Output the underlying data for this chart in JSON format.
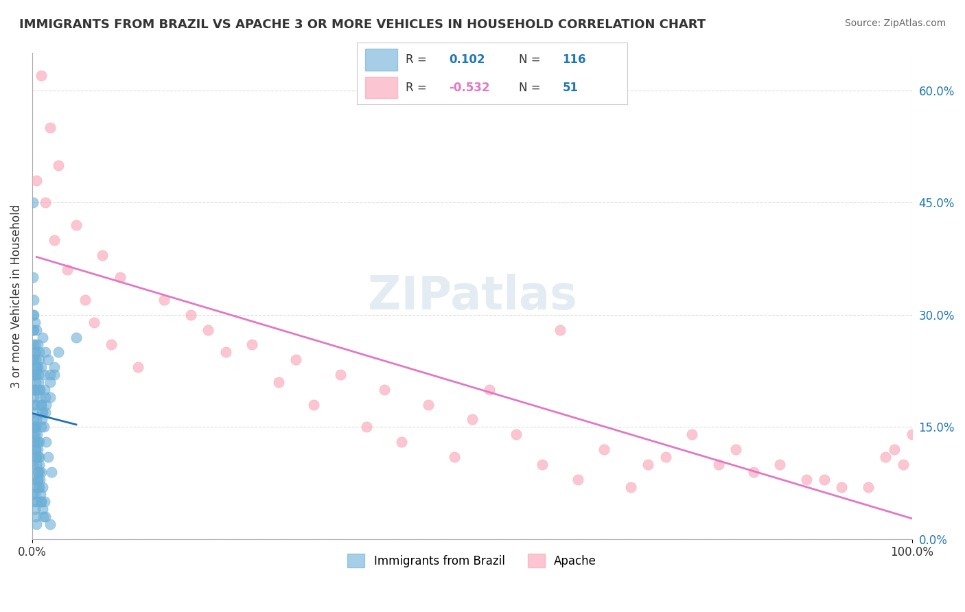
{
  "title": "IMMIGRANTS FROM BRAZIL VS APACHE 3 OR MORE VEHICLES IN HOUSEHOLD CORRELATION CHART",
  "source": "Source: ZipAtlas.com",
  "xlabel": "",
  "ylabel": "3 or more Vehicles in Household",
  "xlim": [
    0.0,
    100.0
  ],
  "ylim": [
    0.0,
    65.0
  ],
  "right_yticks": [
    0.0,
    15.0,
    30.0,
    45.0,
    60.0
  ],
  "xtick_labels": [
    "0.0%",
    "100.0%"
  ],
  "blue_label": "Immigrants from Brazil",
  "pink_label": "Apache",
  "blue_R": 0.102,
  "blue_N": 116,
  "pink_R": -0.532,
  "pink_N": 51,
  "blue_color": "#6baed6",
  "pink_color": "#fa9fb5",
  "blue_trend_color": "#2171b5",
  "pink_trend_color": "#e377c2",
  "watermark": "ZIPatlas",
  "background_color": "#ffffff",
  "grid_color": "#dddddd",
  "legend_R_color": "#1f77b4",
  "legend_N_color": "#1f77b4",
  "blue_scatter_x": [
    0.3,
    0.5,
    0.2,
    0.4,
    0.6,
    0.8,
    1.0,
    1.2,
    1.5,
    0.1,
    0.2,
    0.3,
    0.4,
    0.5,
    0.6,
    0.7,
    0.8,
    0.9,
    1.0,
    1.1,
    1.3,
    1.4,
    1.6,
    1.8,
    2.0,
    0.1,
    0.2,
    0.3,
    0.1,
    0.2,
    0.3,
    0.4,
    0.5,
    0.2,
    0.3,
    0.1,
    0.2,
    0.3,
    0.5,
    0.4,
    0.6,
    0.7,
    0.8,
    1.0,
    1.2,
    1.5,
    2.0,
    2.5,
    3.0,
    5.0,
    0.1,
    0.2,
    0.3,
    0.4,
    0.5,
    0.6,
    0.7,
    0.8,
    0.1,
    0.2,
    0.3,
    0.4,
    0.5,
    0.1,
    0.2,
    0.3,
    0.1,
    0.15,
    0.25,
    0.35,
    0.45,
    0.55,
    0.65,
    0.75,
    0.85,
    0.95,
    1.05,
    1.15,
    1.25,
    0.2,
    0.4,
    0.6,
    0.8,
    1.0,
    1.5,
    2.0,
    2.5,
    0.1,
    0.2,
    0.3,
    0.1,
    0.2,
    0.4,
    0.6,
    0.8,
    1.0,
    1.2,
    1.4,
    0.3,
    0.5,
    0.7,
    0.9,
    1.1,
    1.3,
    1.6,
    1.8,
    2.2,
    0.1,
    0.2,
    0.3,
    0.4,
    0.6,
    0.8,
    1.0,
    1.5,
    2.0
  ],
  "blue_scatter_y": [
    25.0,
    28.0,
    30.0,
    22.0,
    26.0,
    24.0,
    23.0,
    27.0,
    25.0,
    20.0,
    18.0,
    15.0,
    12.0,
    10.0,
    8.0,
    22.0,
    25.0,
    20.0,
    18.0,
    16.0,
    22.0,
    20.0,
    18.0,
    24.0,
    22.0,
    28.0,
    22.0,
    20.0,
    15.0,
    14.0,
    13.0,
    12.0,
    11.0,
    16.0,
    14.0,
    10.0,
    8.0,
    6.0,
    5.0,
    7.0,
    9.0,
    11.0,
    13.0,
    15.0,
    17.0,
    19.0,
    21.0,
    23.0,
    25.0,
    27.0,
    6.0,
    5.0,
    4.0,
    3.0,
    2.0,
    8.0,
    7.0,
    9.0,
    30.0,
    28.0,
    26.0,
    24.0,
    23.0,
    35.0,
    32.0,
    29.0,
    45.0,
    22.0,
    20.0,
    18.0,
    16.0,
    14.0,
    12.0,
    10.0,
    8.0,
    6.0,
    5.0,
    4.0,
    3.0,
    19.0,
    21.0,
    23.0,
    20.0,
    18.0,
    17.0,
    19.0,
    22.0,
    24.0,
    22.0,
    20.0,
    26.0,
    24.0,
    15.0,
    13.0,
    11.0,
    9.0,
    7.0,
    5.0,
    25.0,
    23.0,
    21.0,
    19.0,
    17.0,
    15.0,
    13.0,
    11.0,
    9.0,
    17.0,
    15.0,
    13.0,
    11.0,
    9.0,
    7.0,
    5.0,
    3.0,
    2.0
  ],
  "pink_scatter_x": [
    1.0,
    2.0,
    3.0,
    5.0,
    8.0,
    10.0,
    15.0,
    20.0,
    25.0,
    30.0,
    35.0,
    40.0,
    45.0,
    50.0,
    55.0,
    60.0,
    65.0,
    70.0,
    75.0,
    80.0,
    85.0,
    90.0,
    95.0,
    0.5,
    1.5,
    2.5,
    4.0,
    6.0,
    7.0,
    9.0,
    12.0,
    18.0,
    22.0,
    28.0,
    32.0,
    38.0,
    42.0,
    48.0,
    52.0,
    58.0,
    62.0,
    68.0,
    72.0,
    78.0,
    82.0,
    88.0,
    92.0,
    97.0,
    98.0,
    99.0,
    100.0
  ],
  "pink_scatter_y": [
    62.0,
    55.0,
    50.0,
    42.0,
    38.0,
    35.0,
    32.0,
    28.0,
    26.0,
    24.0,
    22.0,
    20.0,
    18.0,
    16.0,
    14.0,
    28.0,
    12.0,
    10.0,
    14.0,
    12.0,
    10.0,
    8.0,
    7.0,
    48.0,
    45.0,
    40.0,
    36.0,
    32.0,
    29.0,
    26.0,
    23.0,
    30.0,
    25.0,
    21.0,
    18.0,
    15.0,
    13.0,
    11.0,
    20.0,
    10.0,
    8.0,
    7.0,
    11.0,
    10.0,
    9.0,
    8.0,
    7.0,
    11.0,
    12.0,
    10.0,
    14.0
  ]
}
